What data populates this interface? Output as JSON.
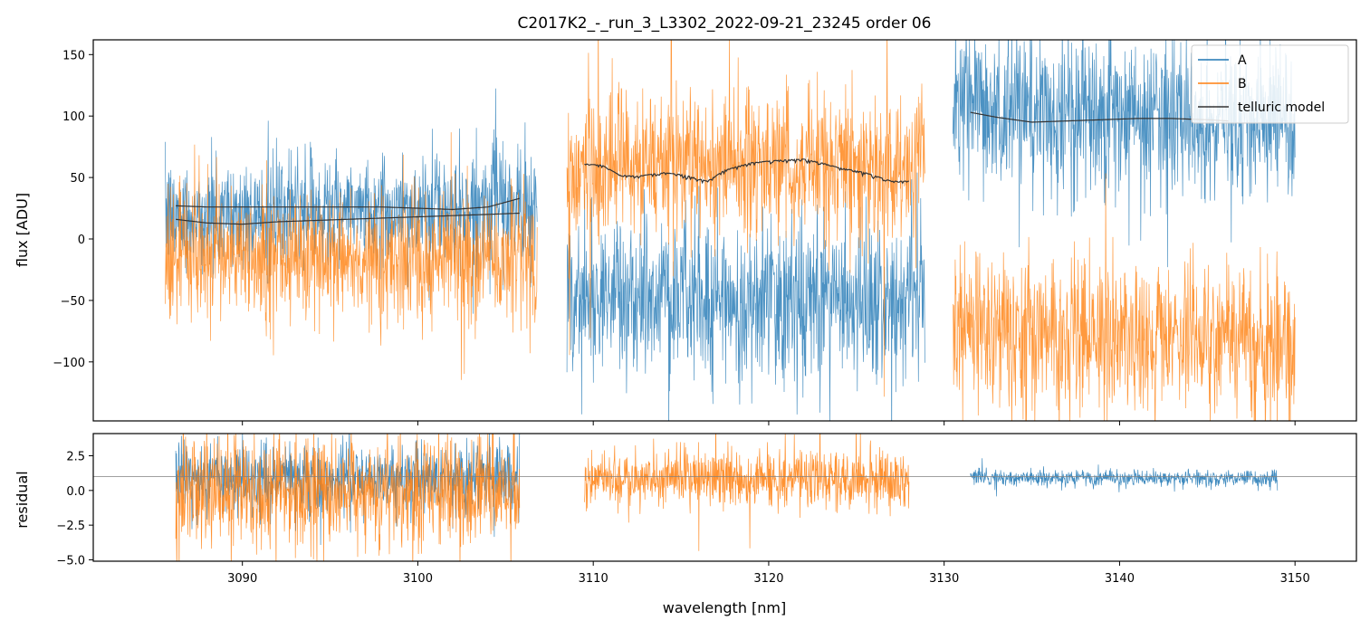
{
  "chart_data": {
    "type": "line",
    "title": "C2017K2_-_run_3_L3302_2022-09-21_23245  order 06",
    "xlabel": "wavelength [nm]",
    "xlim": [
      3081.5,
      3153.5
    ],
    "xticks": [
      3090,
      3100,
      3110,
      3120,
      3130,
      3140,
      3150
    ],
    "colors": {
      "A": "#1f77b4",
      "B": "#ff7f0e",
      "model": "#333333",
      "ref": "#808080"
    },
    "legend": {
      "location": "top-right",
      "entries": [
        "A",
        "B",
        "telluric model"
      ]
    },
    "top_panel": {
      "ylabel": "flux [ADU]",
      "ylim": [
        -148,
        162
      ],
      "yticks": [
        -100,
        -50,
        0,
        50,
        100,
        150
      ],
      "segments": [
        {
          "x_range": [
            3085.6,
            3106.8
          ],
          "A": {
            "base": [
              [
                3085.6,
                18
              ],
              [
                3095,
                22
              ],
              [
                3106.8,
                25
              ]
            ],
            "noise": 22
          },
          "B": {
            "base": [
              [
                3085.6,
                -12
              ],
              [
                3095,
                -14
              ],
              [
                3106.8,
                -16
              ]
            ],
            "noise": 26
          }
        },
        {
          "x_range": [
            3108.5,
            3128.9
          ],
          "A": {
            "base": [
              [
                3108.5,
                -45
              ],
              [
                3118,
                -50
              ],
              [
                3128.9,
                -50
              ]
            ],
            "noise": 32
          },
          "B": {
            "base": [
              [
                3108.5,
                58
              ],
              [
                3118,
                62
              ],
              [
                3128.9,
                55
              ]
            ],
            "noise": 30
          }
        },
        {
          "x_range": [
            3130.5,
            3150.0
          ],
          "A": {
            "base": [
              [
                3130.5,
                105
              ],
              [
                3140,
                100
              ],
              [
                3150.0,
                96
              ]
            ],
            "noise": 32
          },
          "B": {
            "base": [
              [
                3130.5,
                -75
              ],
              [
                3140,
                -80
              ],
              [
                3150.0,
                -82
              ]
            ],
            "noise": 30
          }
        }
      ],
      "telluric_model": [
        {
          "x": [
            3086.2,
            3088,
            3090,
            3092,
            3094,
            3096,
            3098,
            3100,
            3102,
            3104,
            3105.8
          ],
          "y": [
            27,
            26,
            26,
            26,
            26,
            26,
            26,
            25,
            24,
            26,
            33
          ]
        },
        {
          "x": [
            3086.2,
            3088,
            3090,
            3092,
            3094,
            3096,
            3098,
            3100,
            3102,
            3104,
            3105.8
          ],
          "y": [
            16,
            13,
            12,
            14,
            15,
            16,
            17,
            18,
            19,
            20,
            21
          ]
        },
        {
          "x": [
            3109.5,
            3110.5,
            3111.5,
            3112.5,
            3114,
            3115.2,
            3116.5,
            3117.5,
            3119,
            3120.5,
            3122,
            3123,
            3124,
            3125.5,
            3127,
            3128
          ],
          "y": [
            61,
            60,
            52,
            51,
            54,
            52,
            47,
            56,
            62,
            64,
            65,
            62,
            58,
            54,
            47,
            47
          ]
        },
        {
          "x": [
            3131.5,
            3133,
            3135,
            3137,
            3139,
            3141,
            3143,
            3145,
            3146.2
          ],
          "y": [
            103,
            99,
            95,
            96,
            97,
            98,
            98,
            97,
            96
          ]
        }
      ]
    },
    "bottom_panel": {
      "ylabel": "residual",
      "ylim": [
        -5.1,
        4.1
      ],
      "yticks": [
        -5.0,
        -2.5,
        0.0,
        2.5
      ],
      "ytick_labels": [
        "−5.0",
        "−2.5",
        "0.0",
        "2.5"
      ],
      "reference_line": 1.0,
      "segments": [
        {
          "x_range": [
            3086.2,
            3105.8
          ],
          "A": {
            "center": 0.9,
            "noise": 1.2
          },
          "B": {
            "center": 0.0,
            "noise": 2.0
          }
        },
        {
          "x_range": [
            3109.5,
            3128.0
          ],
          "B": {
            "center": 0.9,
            "noise": 1.0
          }
        },
        {
          "x_range": [
            3131.5,
            3149.0
          ],
          "A": {
            "center": 0.9,
            "noise": 0.3
          }
        }
      ]
    }
  }
}
